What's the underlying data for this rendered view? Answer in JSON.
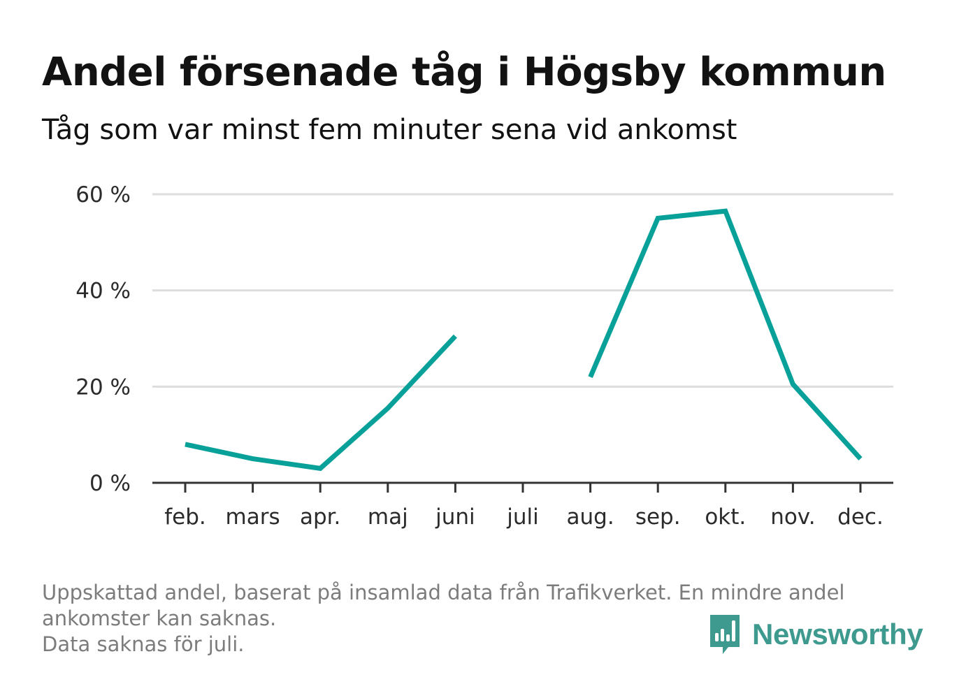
{
  "title": "Andel försenade tåg i Högsby kommun",
  "subtitle": "Tåg som var minst fem minuter sena vid ankomst",
  "footer": {
    "line1": "Uppskattad andel, baserat på insamlad data från Trafikverket. En mindre andel ankomster kan saknas.",
    "line2": "Data saknas för juli."
  },
  "brand": {
    "name": "Newsworthy",
    "icon": "newsworthy-logo-icon",
    "color": "#3e9a8e"
  },
  "colors": {
    "line": "#08a199",
    "grid": "#dddddd",
    "axis": "#333333"
  },
  "chart_data": {
    "type": "line",
    "title": "Andel försenade tåg i Högsby kommun",
    "subtitle": "Tåg som var minst fem minuter sena vid ankomst",
    "xlabel": "",
    "ylabel": "",
    "categories": [
      "feb.",
      "mars",
      "apr.",
      "maj",
      "juni",
      "juli",
      "aug.",
      "sep.",
      "okt.",
      "nov.",
      "dec."
    ],
    "series": [
      {
        "values": [
          8,
          5,
          3,
          15.5,
          30.5,
          null,
          22,
          55,
          56.5,
          20.5,
          5
        ]
      }
    ],
    "ylim": [
      0,
      60
    ],
    "yticks": [
      0,
      20,
      40,
      60
    ],
    "ytick_labels": [
      "0 %",
      "20 %",
      "40 %",
      "60 %"
    ],
    "grid": true,
    "legend": "none"
  }
}
